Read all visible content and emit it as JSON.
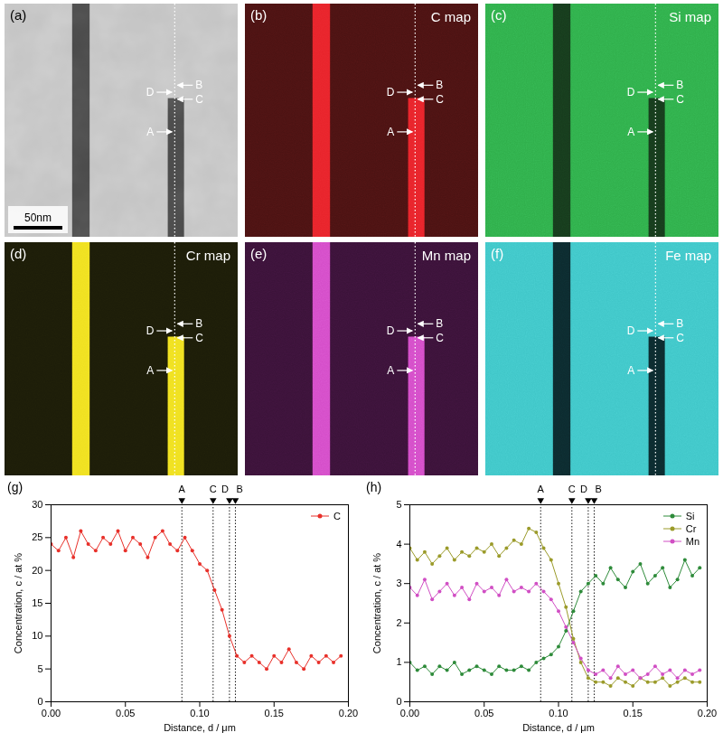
{
  "figure": {
    "maps": [
      {
        "panel": "(a)",
        "background": "#c4c4c4",
        "color": "#4a4a4a",
        "scale_bar": "50nm"
      },
      {
        "panel": "(b)",
        "title": "C map",
        "background": "#4a1212",
        "color": "#e8232a"
      },
      {
        "panel": "(c)",
        "title": "Si map",
        "background": "#2fae4a",
        "color": "#163a1c"
      },
      {
        "panel": "(d)",
        "title": "Cr map",
        "background": "#1c1c08",
        "color": "#f0e020"
      },
      {
        "panel": "(e)",
        "title": "Mn map",
        "background": "#3a1238",
        "color": "#d44cc8"
      },
      {
        "panel": "(f)",
        "title": "Fe map",
        "background": "#3fc6c8",
        "color": "#0c2a2e"
      }
    ],
    "markers": [
      "B",
      "D",
      "C",
      "A"
    ]
  },
  "chart_data": [
    {
      "type": "line",
      "panel": "(g)",
      "x_label": "Distance, d / μm",
      "y_label": "Concentration, c / at %",
      "x": [
        0,
        0.005,
        0.01,
        0.015,
        0.02,
        0.025,
        0.03,
        0.035,
        0.04,
        0.045,
        0.05,
        0.055,
        0.06,
        0.065,
        0.07,
        0.075,
        0.08,
        0.085,
        0.09,
        0.095,
        0.1,
        0.105,
        0.11,
        0.115,
        0.12,
        0.125,
        0.13,
        0.135,
        0.14,
        0.145,
        0.15,
        0.155,
        0.16,
        0.165,
        0.17,
        0.175,
        0.18,
        0.185,
        0.19,
        0.195
      ],
      "series": [
        {
          "name": "C",
          "color": "#e8302a",
          "marker": "circle",
          "values": [
            24,
            23,
            25,
            22,
            26,
            24,
            23,
            25,
            24,
            26,
            23,
            25,
            24,
            22,
            25,
            26,
            24,
            23,
            25,
            23,
            21,
            20,
            17,
            14,
            10,
            7,
            6,
            7,
            6,
            5,
            7,
            6,
            8,
            6,
            5,
            7,
            6,
            7,
            6,
            7
          ]
        }
      ],
      "xlim": [
        0,
        0.2
      ],
      "xticks": [
        {
          "value": 0,
          "label": "0.00"
        },
        {
          "value": 0.05,
          "label": "0.05"
        },
        {
          "value": 0.1,
          "label": "0.10"
        },
        {
          "value": 0.15,
          "label": "0.15"
        },
        {
          "value": 0.2,
          "label": "0.20"
        }
      ],
      "ylim": [
        0,
        30
      ],
      "yticks": [
        0,
        5,
        10,
        15,
        20,
        25,
        30
      ],
      "legend": "top-right",
      "annotations": [
        {
          "label": "A",
          "x": 0.088
        },
        {
          "label": "C",
          "x": 0.109
        },
        {
          "label": "D",
          "x": 0.12
        },
        {
          "label": "B",
          "x": 0.124
        }
      ]
    },
    {
      "type": "line",
      "panel": "(h)",
      "x_label": "Distance, d / μm",
      "y_label": "Concentration, c / at %",
      "x": [
        0,
        0.005,
        0.01,
        0.015,
        0.02,
        0.025,
        0.03,
        0.035,
        0.04,
        0.045,
        0.05,
        0.055,
        0.06,
        0.065,
        0.07,
        0.075,
        0.08,
        0.085,
        0.09,
        0.095,
        0.1,
        0.105,
        0.11,
        0.115,
        0.12,
        0.125,
        0.13,
        0.135,
        0.14,
        0.145,
        0.15,
        0.155,
        0.16,
        0.165,
        0.17,
        0.175,
        0.18,
        0.185,
        0.19,
        0.195
      ],
      "series": [
        {
          "name": "Si",
          "color": "#2e8b3a",
          "marker": "circle",
          "values": [
            1.0,
            0.8,
            0.9,
            0.7,
            0.9,
            0.8,
            1.0,
            0.7,
            0.8,
            0.9,
            0.8,
            0.7,
            0.9,
            0.8,
            0.8,
            0.9,
            0.8,
            1.0,
            1.1,
            1.2,
            1.4,
            1.8,
            2.3,
            2.8,
            3.0,
            3.2,
            3.0,
            3.4,
            3.1,
            2.9,
            3.3,
            3.5,
            3.0,
            3.2,
            3.4,
            2.9,
            3.1,
            3.6,
            3.2,
            3.4
          ]
        },
        {
          "name": "Cr",
          "color": "#9b9b2a",
          "marker": "circle",
          "values": [
            3.9,
            3.6,
            3.8,
            3.5,
            3.7,
            3.9,
            3.6,
            3.8,
            3.7,
            3.9,
            3.8,
            4.0,
            3.7,
            3.9,
            4.1,
            4.0,
            4.4,
            4.3,
            3.9,
            3.6,
            3.0,
            2.4,
            1.6,
            1.0,
            0.6,
            0.5,
            0.5,
            0.4,
            0.6,
            0.5,
            0.4,
            0.6,
            0.5,
            0.5,
            0.6,
            0.4,
            0.5,
            0.6,
            0.5,
            0.5
          ]
        },
        {
          "name": "Mn",
          "color": "#d14fc4",
          "marker": "circle",
          "values": [
            2.9,
            2.7,
            3.1,
            2.6,
            2.8,
            3.0,
            2.7,
            2.9,
            2.6,
            3.0,
            2.8,
            2.9,
            2.7,
            3.1,
            2.8,
            2.9,
            2.8,
            3.0,
            2.8,
            2.6,
            2.3,
            1.9,
            1.5,
            1.1,
            0.8,
            0.7,
            0.8,
            0.6,
            0.9,
            0.7,
            0.8,
            0.6,
            0.7,
            0.9,
            0.7,
            0.8,
            0.6,
            0.8,
            0.7,
            0.8
          ]
        }
      ],
      "xlim": [
        0,
        0.2
      ],
      "xticks": [
        {
          "value": 0,
          "label": "0.00"
        },
        {
          "value": 0.05,
          "label": "0.05"
        },
        {
          "value": 0.1,
          "label": "0.10"
        },
        {
          "value": 0.15,
          "label": "0.15"
        },
        {
          "value": 0.2,
          "label": "0.20"
        }
      ],
      "ylim": [
        0,
        5
      ],
      "yticks": [
        0,
        1,
        2,
        3,
        4,
        5
      ],
      "legend": "top-right",
      "annotations": [
        {
          "label": "A",
          "x": 0.088
        },
        {
          "label": "C",
          "x": 0.109
        },
        {
          "label": "D",
          "x": 0.12
        },
        {
          "label": "B",
          "x": 0.124
        }
      ]
    }
  ]
}
